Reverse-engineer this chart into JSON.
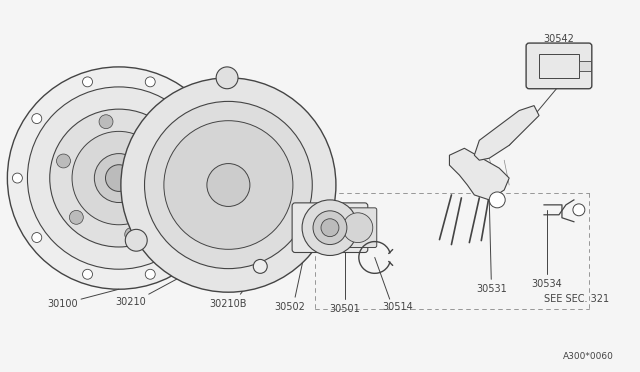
{
  "bg_color": "#f5f5f5",
  "line_color": "#444444",
  "text_color": "#444444",
  "diagram_code": "A300*0060",
  "fig_width": 6.4,
  "fig_height": 3.72,
  "dpi": 100
}
